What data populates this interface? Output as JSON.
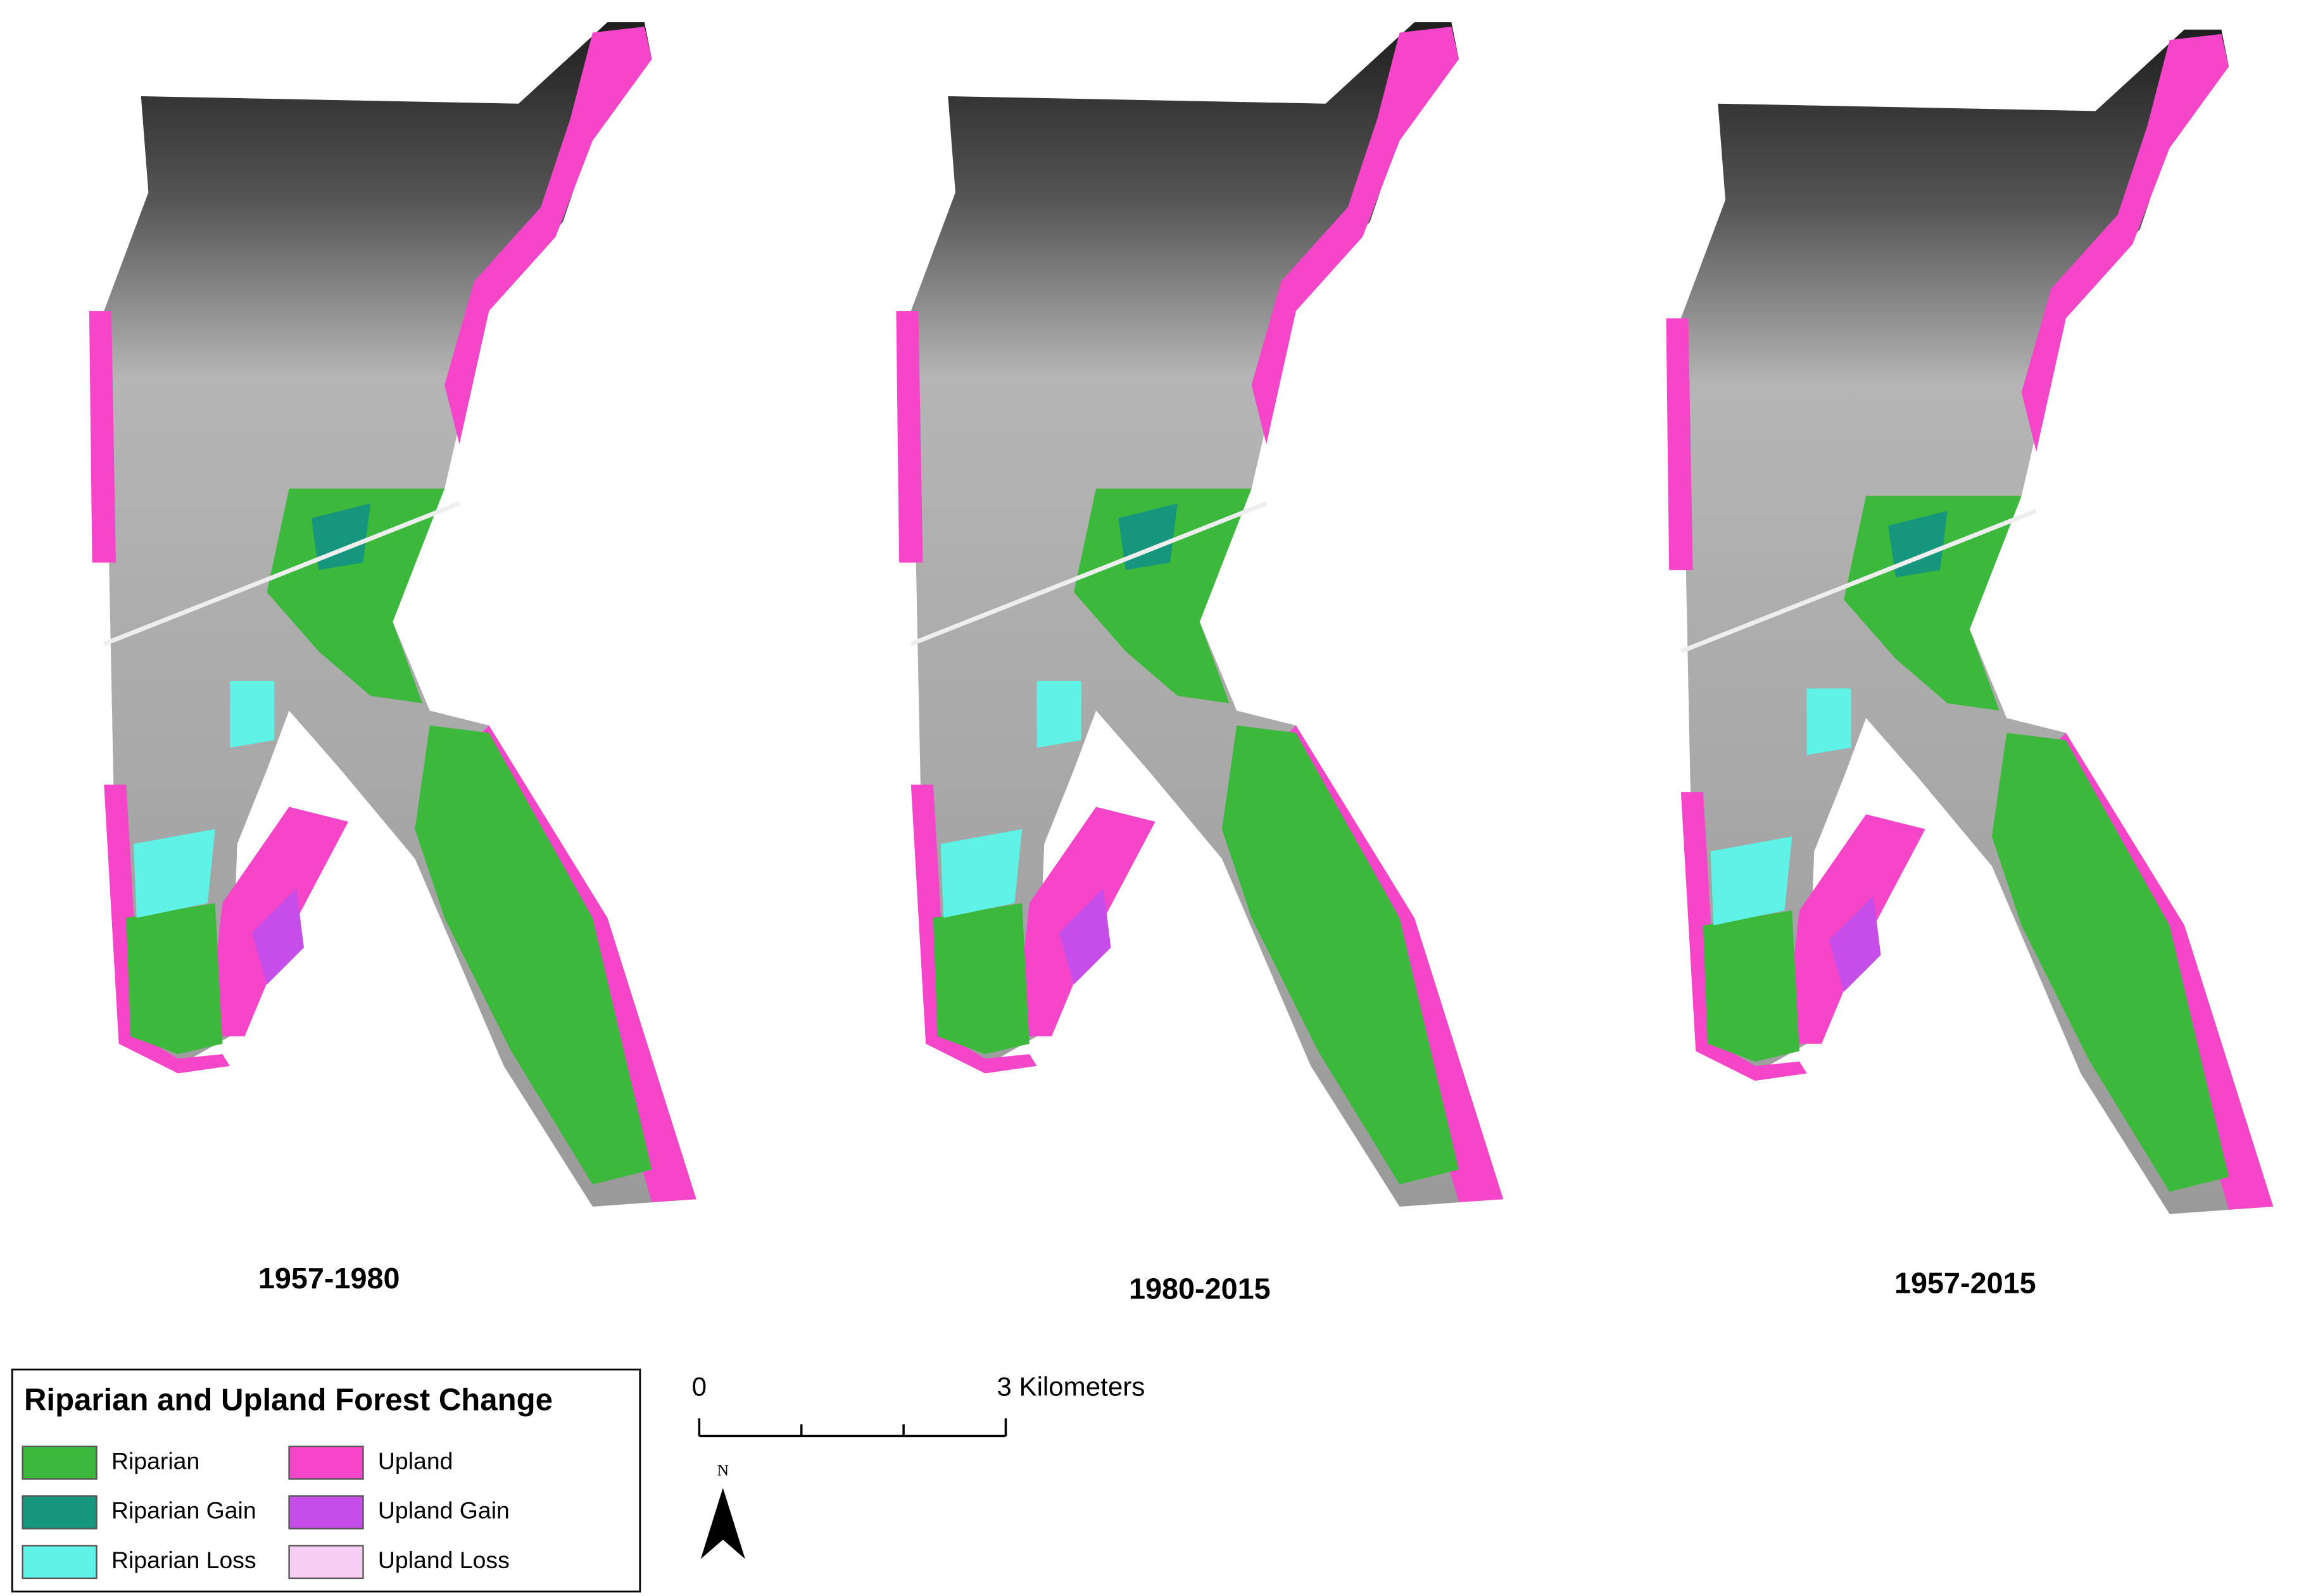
{
  "panels": [
    {
      "label": "1957-1980"
    },
    {
      "label": "1980-2015"
    },
    {
      "label": "1957-2015"
    }
  ],
  "legend": {
    "title": "Riparian and Upland Forest Change",
    "items": [
      {
        "label": "Riparian",
        "color": "#3cb83c"
      },
      {
        "label": "Riparian Gain",
        "color": "#16967c"
      },
      {
        "label": "Riparian Loss",
        "color": "#5ff2e6"
      },
      {
        "label": "Upland",
        "color": "#f545c8"
      },
      {
        "label": "Upland Gain",
        "color": "#c64ee8"
      },
      {
        "label": "Upland Loss",
        "color": "#f6cdf3"
      }
    ]
  },
  "scale_bar": {
    "start": "0",
    "end": "3 Kilometers"
  },
  "north": "N"
}
